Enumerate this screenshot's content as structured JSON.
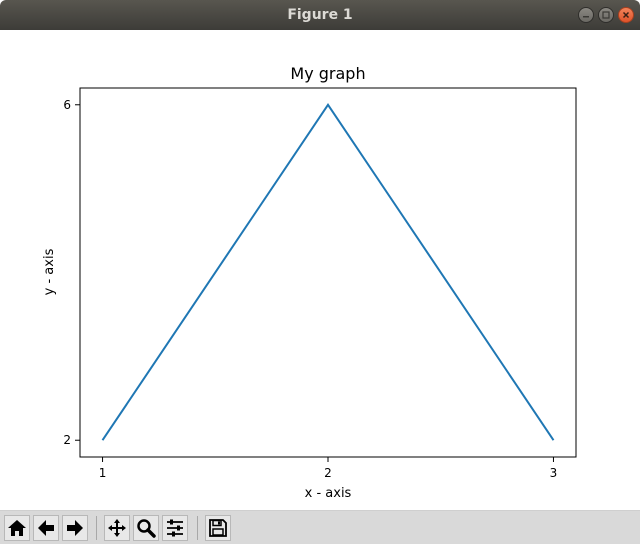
{
  "window": {
    "title": "Figure 1",
    "controls": [
      "minimize-icon",
      "maximize-icon",
      "close-icon"
    ]
  },
  "chart_data": {
    "type": "line",
    "title": "My graph",
    "xlabel": "x - axis",
    "ylabel": "y - axis",
    "x": [
      1,
      2,
      3
    ],
    "series": [
      {
        "values": [
          2,
          6,
          2
        ],
        "color": "#1f77b4"
      }
    ],
    "xlim": [
      0.9,
      3.1
    ],
    "ylim": [
      1.8,
      6.2
    ],
    "xticks": [
      1,
      2,
      3
    ],
    "yticks": [
      2,
      6
    ],
    "grid": false
  },
  "toolbar": {
    "buttons": [
      {
        "name": "home",
        "icon": "home-icon"
      },
      {
        "name": "back",
        "icon": "arrow-left-icon"
      },
      {
        "name": "forward",
        "icon": "arrow-right-icon"
      },
      {
        "name": "pan",
        "icon": "move-icon"
      },
      {
        "name": "zoom",
        "icon": "zoom-icon"
      },
      {
        "name": "configure-subplots",
        "icon": "sliders-icon"
      },
      {
        "name": "save",
        "icon": "floppy-icon"
      }
    ]
  }
}
